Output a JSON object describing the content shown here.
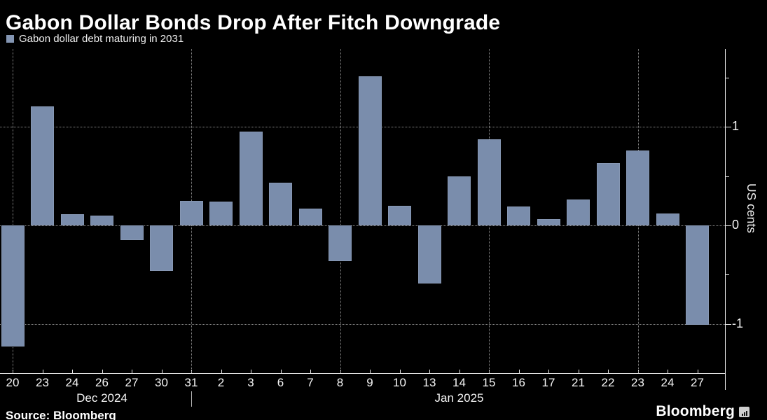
{
  "header": {
    "title": "Gabon Dollar Bonds Drop After Fitch Downgrade"
  },
  "legend": {
    "label": "Gabon dollar debt maturing in 2031",
    "swatch_color": "#8496b3"
  },
  "chart_data": {
    "type": "bar",
    "title": "Gabon Dollar Bonds Drop After Fitch Downgrade",
    "series_name": "Gabon dollar debt maturing in 2031",
    "ylabel": "US cents",
    "categories": [
      "20",
      "23",
      "24",
      "26",
      "27",
      "30",
      "31",
      "2",
      "3",
      "6",
      "7",
      "8",
      "9",
      "10",
      "13",
      "14",
      "15",
      "16",
      "17",
      "21",
      "22",
      "23",
      "24",
      "27"
    ],
    "values": [
      -1.23,
      1.21,
      0.11,
      0.1,
      -0.15,
      -0.46,
      0.25,
      0.24,
      0.95,
      0.43,
      0.17,
      -0.36,
      1.51,
      0.2,
      -0.59,
      0.5,
      0.87,
      0.19,
      0.06,
      0.26,
      0.63,
      0.76,
      0.12,
      -1.01
    ],
    "month_groups": [
      {
        "label": "Dec 2024",
        "start": 0,
        "end": 6
      },
      {
        "label": "Jan 2025",
        "start": 7,
        "end": 23
      }
    ],
    "month_separator_index": 6,
    "ylim": [
      -1.5,
      1.79
    ],
    "ytick_major": [
      1,
      0,
      -1
    ],
    "ytick_minor": [
      1.5,
      0.5,
      -0.5
    ],
    "grid_h_values": [
      1,
      0,
      -1
    ],
    "grid_v_indices": [
      0,
      6,
      11,
      16,
      21
    ],
    "bar_color": "#7a8dac",
    "background_color": "#000000",
    "grid": true,
    "legend_position": "top-left",
    "y_axis_side": "right"
  },
  "footer": {
    "source": "Source: Bloomberg",
    "brand": "Bloomberg"
  }
}
